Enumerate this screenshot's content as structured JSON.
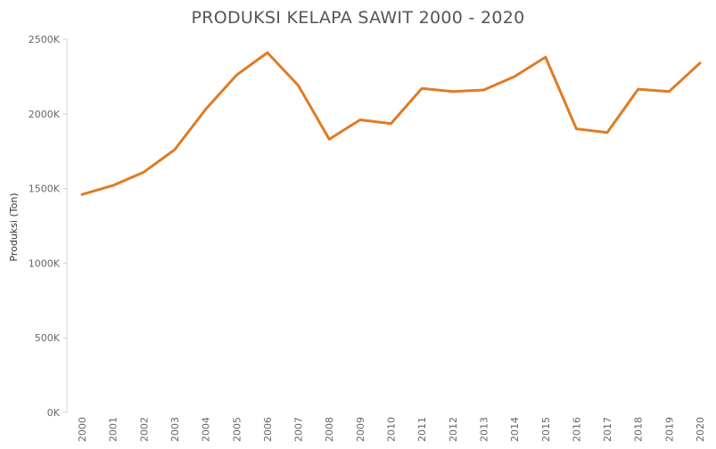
{
  "chart_data": {
    "type": "line",
    "title": "PRODUKSI KELAPA SAWIT 2000 - 2020",
    "xlabel": "",
    "ylabel": "Produksi (Ton)",
    "categories": [
      "2000",
      "2001",
      "2002",
      "2003",
      "2004",
      "2005",
      "2006",
      "2007",
      "2008",
      "2009",
      "2010",
      "2011",
      "2012",
      "2013",
      "2014",
      "2015",
      "2016",
      "2017",
      "2018",
      "2019",
      "2020"
    ],
    "series": [
      {
        "values": [
          1460,
          1520,
          1610,
          1760,
          2030,
          2260,
          2410,
          2190,
          1830,
          1960,
          1935,
          2170,
          2150,
          2160,
          2250,
          2380,
          1900,
          1875,
          2165,
          2150,
          2340
        ]
      }
    ],
    "ylim": [
      0,
      2500
    ],
    "yticks": [
      0,
      500,
      1000,
      1500,
      2000,
      2500
    ],
    "ytick_labels": [
      "0K",
      "500K",
      "1000K",
      "1500K",
      "2000K",
      "2500K"
    ],
    "grid": false,
    "legend": "none",
    "line_color": "#e07b24"
  }
}
